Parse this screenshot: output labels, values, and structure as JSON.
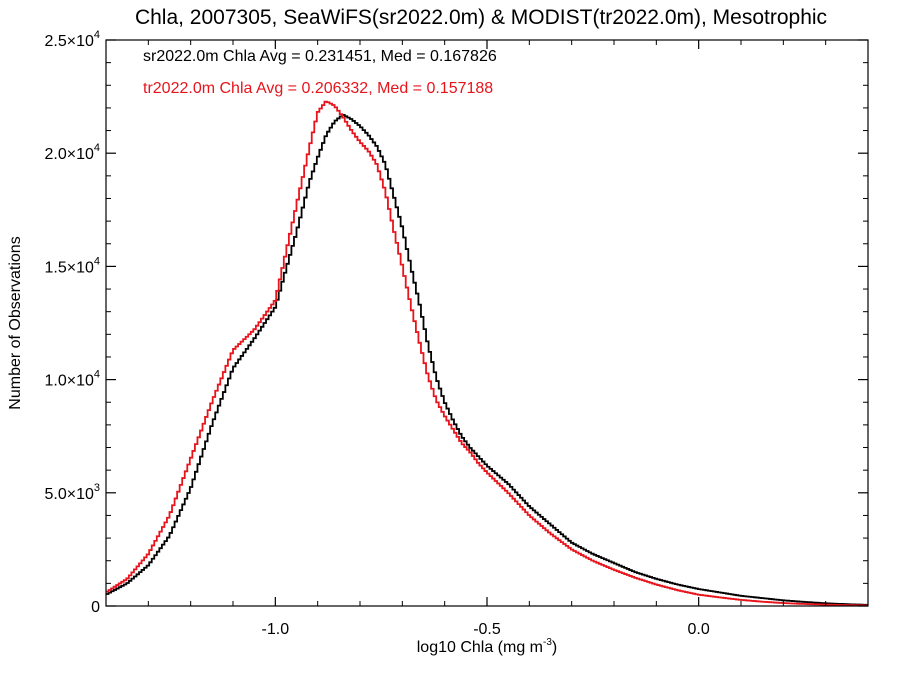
{
  "chart_data": {
    "type": "line",
    "title": "Chla, 2007305, SeaWiFS(sr2022.0m) & MODIST(tr2022.0m), Mesotrophic",
    "xlabel": "log10 Chla (mg m",
    "xlabel_sup": "-3",
    "xlabel_end": ")",
    "ylabel": "Number of Observations",
    "xlim": [
      -1.4,
      0.4
    ],
    "ylim": [
      0,
      25000
    ],
    "x_ticks": [
      -1.0,
      -0.5,
      0.0
    ],
    "x_tick_labels": [
      "-1.0",
      "-0.5",
      "0.0"
    ],
    "y_ticks": [
      0,
      5000,
      10000,
      15000,
      20000,
      25000
    ],
    "y_tick_labels": [
      {
        "mantissa": "0",
        "exp": ""
      },
      {
        "mantissa": "5.0×10",
        "exp": "3"
      },
      {
        "mantissa": "1.0×10",
        "exp": "4"
      },
      {
        "mantissa": "1.5×10",
        "exp": "4"
      },
      {
        "mantissa": "2.0×10",
        "exp": "4"
      },
      {
        "mantissa": "2.5×10",
        "exp": "4"
      }
    ],
    "grid": false,
    "legend_position": "top-left",
    "annotations": [
      {
        "text": "sr2022.0m Chla Avg = 0.231451, Med = 0.167826",
        "color": "#000000"
      },
      {
        "text": "tr2022.0m Chla Avg = 0.206332, Med = 0.157188",
        "color": "#e8141c"
      }
    ],
    "series": [
      {
        "color": "#000000",
        "x": [
          -1.4,
          -1.35,
          -1.3,
          -1.25,
          -1.2,
          -1.15,
          -1.1,
          -1.05,
          -1.0,
          -0.95,
          -0.92,
          -0.9,
          -0.88,
          -0.86,
          -0.84,
          -0.82,
          -0.8,
          -0.78,
          -0.76,
          -0.74,
          -0.72,
          -0.7,
          -0.68,
          -0.66,
          -0.64,
          -0.62,
          -0.6,
          -0.58,
          -0.56,
          -0.54,
          -0.52,
          -0.5,
          -0.45,
          -0.4,
          -0.35,
          -0.3,
          -0.25,
          -0.2,
          -0.15,
          -0.1,
          -0.05,
          0.0,
          0.05,
          0.1,
          0.15,
          0.2,
          0.25,
          0.3,
          0.35,
          0.4
        ],
        "y": [
          500,
          1000,
          1800,
          3100,
          5200,
          8000,
          10500,
          11800,
          13200,
          16500,
          18700,
          19800,
          20800,
          21400,
          21700,
          21500,
          21200,
          20800,
          20300,
          19500,
          18100,
          16700,
          15000,
          13400,
          11600,
          10100,
          9000,
          8200,
          7500,
          7000,
          6600,
          6200,
          5400,
          4400,
          3600,
          2800,
          2300,
          1900,
          1500,
          1200,
          950,
          750,
          600,
          450,
          350,
          250,
          180,
          120,
          80,
          50
        ]
      },
      {
        "color": "#e8141c",
        "x": [
          -1.4,
          -1.35,
          -1.3,
          -1.25,
          -1.2,
          -1.15,
          -1.1,
          -1.05,
          -1.0,
          -0.95,
          -0.92,
          -0.9,
          -0.88,
          -0.86,
          -0.84,
          -0.82,
          -0.8,
          -0.78,
          -0.76,
          -0.74,
          -0.72,
          -0.7,
          -0.68,
          -0.66,
          -0.64,
          -0.62,
          -0.6,
          -0.58,
          -0.56,
          -0.54,
          -0.52,
          -0.5,
          -0.45,
          -0.4,
          -0.35,
          -0.3,
          -0.25,
          -0.2,
          -0.15,
          -0.1,
          -0.05,
          0.0,
          0.05,
          0.1,
          0.15,
          0.2,
          0.25,
          0.3,
          0.35,
          0.4
        ],
        "y": [
          600,
          1200,
          2300,
          4000,
          6500,
          9000,
          11300,
          12200,
          13500,
          17700,
          20200,
          21800,
          22300,
          22100,
          21600,
          21000,
          20500,
          20100,
          19500,
          18300,
          16600,
          15000,
          13300,
          11700,
          10200,
          9100,
          8400,
          7800,
          7200,
          6800,
          6300,
          5900,
          5000,
          4000,
          3200,
          2500,
          2000,
          1600,
          1250,
          950,
          700,
          500,
          380,
          270,
          190,
          130,
          90,
          60,
          40,
          25
        ]
      }
    ]
  }
}
